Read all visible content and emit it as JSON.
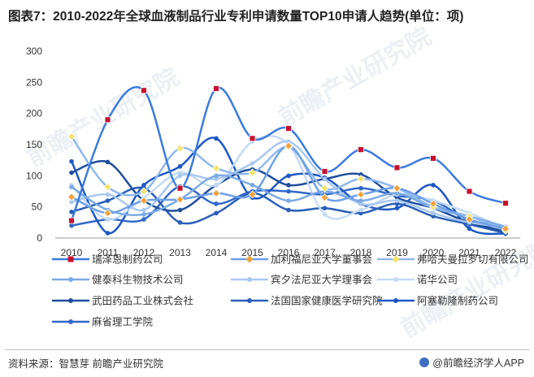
{
  "title": "图表7：2010-2022年全球血液制品行业专利申请数量TOP10申请人趋势(单位：项)",
  "source": "资料来源：智慧芽 前瞻产业研究院",
  "brand": "@前瞻经济学人APP",
  "watermark": "前瞻产业研究院",
  "chart_data": {
    "type": "line",
    "x": [
      2010,
      2011,
      2012,
      2013,
      2014,
      2015,
      2016,
      2017,
      2018,
      2019,
      2020,
      2021,
      2022
    ],
    "ylim": [
      0,
      300
    ],
    "yticks": [
      0,
      50,
      100,
      150,
      200,
      250,
      300
    ],
    "grid": false,
    "legend_position": "bottom",
    "series": [
      {
        "name": "瑞泽恩制药公司",
        "color": "#3b7be0",
        "marker": "square-red",
        "values": [
          28,
          190,
          237,
          80,
          240,
          160,
          176,
          107,
          142,
          113,
          128,
          75,
          56
        ]
      },
      {
        "name": "加利福尼亚大学董事会",
        "color": "#6ea0e8",
        "marker": "diamond-orange",
        "values": [
          66,
          40,
          60,
          62,
          72,
          70,
          148,
          65,
          70,
          80,
          55,
          30,
          15
        ]
      },
      {
        "name": "弗哈夫曼拉罗切有限公司",
        "color": "#8fb8ee",
        "marker": "diamond-yellow",
        "values": [
          163,
          82,
          75,
          144,
          112,
          105,
          146,
          80,
          95,
          80,
          50,
          35,
          12
        ]
      },
      {
        "name": "健泰科生物技术公司",
        "color": "#7aaae6",
        "marker": "circle",
        "values": [
          82,
          45,
          38,
          62,
          100,
          85,
          60,
          75,
          60,
          72,
          48,
          35,
          18
        ]
      },
      {
        "name": "宾夕法尼亚大学理事会",
        "color": "#a9c8f0",
        "marker": "circle",
        "values": [
          58,
          70,
          45,
          100,
          95,
          120,
          155,
          95,
          55,
          60,
          40,
          25,
          18
        ]
      },
      {
        "name": "诺华公司",
        "color": "#c4daf5",
        "marker": "circle",
        "values": [
          85,
          30,
          65,
          105,
          85,
          155,
          150,
          38,
          45,
          70,
          60,
          40,
          15
        ]
      },
      {
        "name": "武田药品工业株式会社",
        "color": "#1f4e9c",
        "marker": "circle",
        "values": [
          105,
          122,
          60,
          45,
          85,
          110,
          85,
          95,
          102,
          65,
          48,
          25,
          10
        ]
      },
      {
        "name": "法国国家健康医学研究院",
        "color": "#2a5fb8",
        "marker": "circle",
        "values": [
          42,
          60,
          80,
          25,
          40,
          72,
          45,
          48,
          40,
          55,
          35,
          22,
          8
        ]
      },
      {
        "name": "阿塞勒隆制药公司",
        "color": "#1d58c4",
        "marker": "circle",
        "values": [
          123,
          8,
          85,
          115,
          160,
          65,
          100,
          97,
          55,
          48,
          85,
          15,
          7
        ]
      },
      {
        "name": "麻省理工学院",
        "color": "#3068c8",
        "marker": "circle",
        "values": [
          20,
          30,
          30,
          83,
          55,
          75,
          75,
          70,
          80,
          68,
          60,
          28,
          10
        ]
      }
    ]
  }
}
